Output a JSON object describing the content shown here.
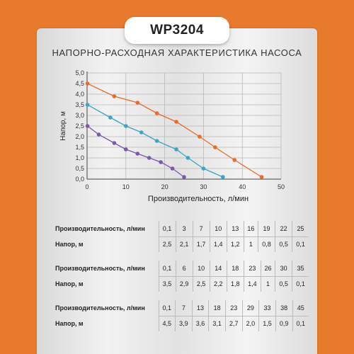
{
  "header": {
    "model": "WP3204"
  },
  "chart_data": {
    "type": "line",
    "title": "НАПОРНО-РАСХОДНАЯ ХАРАКТЕРИСТИКА НАСОСА",
    "xlabel": "Производительность, л/мин",
    "ylabel": "Напор, м",
    "xlim": [
      0,
      50
    ],
    "ylim": [
      0,
      5
    ],
    "x_ticks": [
      "0",
      "10",
      "20",
      "30",
      "40",
      "50"
    ],
    "y_ticks": [
      "0,0",
      "0,5",
      "1,0",
      "1,5",
      "2,0",
      "2,5",
      "3,0",
      "3,5",
      "4,0",
      "4,5",
      "5,0"
    ],
    "grid": true,
    "series": [
      {
        "color": "#ea6a2b",
        "x": [
          0.1,
          7,
          13,
          18,
          23,
          29,
          33,
          38,
          45
        ],
        "y": [
          4.5,
          3.9,
          3.6,
          3.1,
          2.7,
          2.0,
          1.5,
          0.9,
          0.1
        ]
      },
      {
        "color": "#3aa6c4",
        "x": [
          0.1,
          6,
          10,
          14,
          18,
          23,
          26,
          30,
          35
        ],
        "y": [
          3.5,
          2.9,
          2.5,
          2.2,
          1.8,
          1.4,
          1,
          0.5,
          0.1
        ]
      },
      {
        "color": "#7a5aa6",
        "x": [
          0.1,
          3,
          7,
          10,
          13,
          16,
          19,
          22,
          25
        ],
        "y": [
          2.5,
          2.1,
          1.7,
          1.4,
          1.2,
          1,
          0.8,
          0.5,
          0.1
        ]
      }
    ]
  },
  "tables": [
    {
      "flow_label": "Производительность, л/мин",
      "head_label": "Напор, м",
      "flow": [
        "0,1",
        "3",
        "7",
        "10",
        "13",
        "16",
        "19",
        "22",
        "25"
      ],
      "head": [
        "2,5",
        "2,1",
        "1,7",
        "1,4",
        "1,2",
        "1",
        "0,8",
        "0,5",
        "0,1"
      ]
    },
    {
      "flow_label": "Производительность, л/мин",
      "head_label": "Напор, м",
      "flow": [
        "0,1",
        "6",
        "10",
        "14",
        "18",
        "23",
        "26",
        "30",
        "35"
      ],
      "head": [
        "3,5",
        "2,9",
        "2,5",
        "2,2",
        "1,8",
        "1,4",
        "1",
        "0,5",
        "0,1"
      ]
    },
    {
      "flow_label": "Производительность, л/мин",
      "head_label": "Напор, м",
      "flow": [
        "0,1",
        "7",
        "13",
        "18",
        "23",
        "29",
        "33",
        "38",
        "45"
      ],
      "head": [
        "4,5",
        "3,9",
        "3,6",
        "3,1",
        "2,7",
        "2,0",
        "1,5",
        "0,9",
        "0,1"
      ]
    }
  ]
}
